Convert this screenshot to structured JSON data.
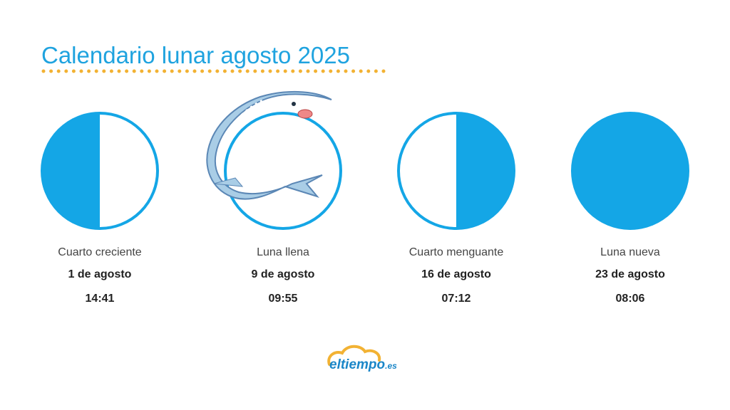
{
  "header": {
    "title": "Calendario lunar agosto 2025"
  },
  "phases": [
    {
      "name": "Cuarto creciente",
      "date": "1 de agosto",
      "time": "14:41"
    },
    {
      "name": "Luna llena",
      "date": "9 de agosto",
      "time": "09:55"
    },
    {
      "name": "Cuarto menguante",
      "date": "16 de agosto",
      "time": "07:12"
    },
    {
      "name": "Luna nueva",
      "date": "23 de agosto",
      "time": "08:06"
    }
  ],
  "logo": {
    "brand": "eltiempo",
    "suffix": ".es"
  }
}
